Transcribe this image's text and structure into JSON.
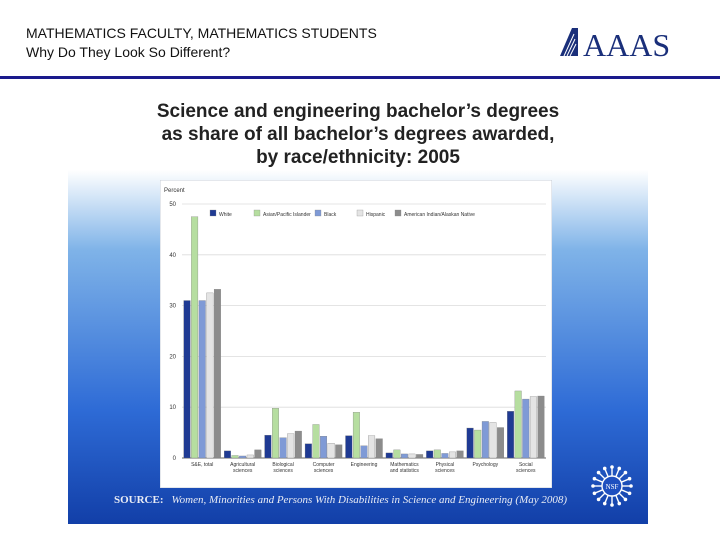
{
  "header": {
    "line1": "MATHEMATICS FACULTY, MATHEMATICS STUDENTS",
    "line2": "Why Do They Look So Different?",
    "logo_text": "AAAS"
  },
  "slide": {
    "title_lines": [
      "Science and engineering bachelor’s degrees",
      "as share of all bachelor’s degrees awarded,",
      "by race/ethnicity: 2005"
    ],
    "source_label": "SOURCE:",
    "source_text": "Women, Minorities and Persons With Disabilities in Science and Engineering (May 2008)",
    "nsf_logo_text": "NSF"
  },
  "chart_data": {
    "type": "bar",
    "ylabel": "Percent",
    "ylim": [
      0,
      50
    ],
    "yticks": [
      0,
      10,
      20,
      30,
      40,
      50
    ],
    "grid": true,
    "legend_position": "top",
    "categories": [
      [
        "S&E, total"
      ],
      [
        "Agricultural",
        "sciences"
      ],
      [
        "Biological",
        "sciences"
      ],
      [
        "Computer",
        "sciences"
      ],
      [
        "Engineering"
      ],
      [
        "Mathematics",
        "and statistics"
      ],
      [
        "Physical",
        "sciences"
      ],
      [
        "Psychology"
      ],
      [
        "Social",
        "sciences"
      ]
    ],
    "series": [
      {
        "name": "White",
        "color": "#1f3a93",
        "values": [
          31,
          1.4,
          4.5,
          2.8,
          4.4,
          1.0,
          1.4,
          5.9,
          9.2
        ]
      },
      {
        "name": "Asian/Pacific Islander",
        "color": "#b6dea0",
        "values": [
          47.5,
          0.5,
          9.8,
          6.6,
          9.0,
          1.6,
          1.6,
          5.5,
          13.2
        ]
      },
      {
        "name": "Black",
        "color": "#7f9ad6",
        "values": [
          31,
          0.4,
          4.0,
          4.3,
          2.4,
          0.8,
          0.9,
          7.2,
          11.6
        ]
      },
      {
        "name": "Hispanic",
        "color": "#e4e4e4",
        "values": [
          32.5,
          0.6,
          4.8,
          2.9,
          4.4,
          0.8,
          1.2,
          7.0,
          12.1
        ]
      },
      {
        "name": "American Indian/Alaskan Native",
        "color": "#8c8c8c",
        "values": [
          33.2,
          1.6,
          5.3,
          2.6,
          3.8,
          0.7,
          1.4,
          6.0,
          12.2
        ]
      }
    ]
  }
}
